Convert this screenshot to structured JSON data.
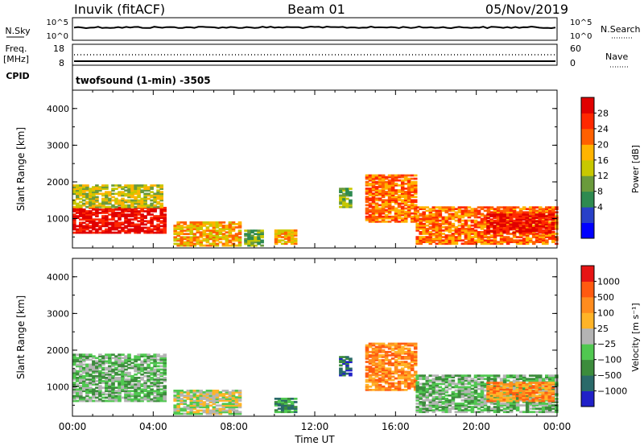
{
  "header": {
    "station": "Inuvik (fitACF)",
    "beam": "Beam 01",
    "date": "05/Nov/2019"
  },
  "sky_panel": {
    "left_label": "N.Sky",
    "right_label": "N.Search",
    "left_ticks": [
      "10^5",
      "10^0"
    ],
    "right_ticks": [
      "10^5",
      "10^0"
    ]
  },
  "freq_panel": {
    "left_label_line1": "Freq.",
    "left_label_line2": "[MHz]",
    "right_label": "Nave",
    "left_ticks": [
      "18",
      "8"
    ],
    "right_ticks": [
      "60",
      "0"
    ],
    "cpid_label": "CPID"
  },
  "program_name": "twofsound (1-min) -3505",
  "colors": {
    "frame": "#000000",
    "ground_scatter": "#b4b4b4"
  },
  "chart_data": [
    {
      "type": "heatmap",
      "quantity": "Power",
      "ylabel": "Slant Range [km]",
      "ylim": [
        200,
        4500
      ],
      "y_ticks": [
        "1000",
        "2000",
        "3000",
        "4000"
      ],
      "x_ticks": [
        "00:00",
        "04:00",
        "08:00",
        "12:00",
        "16:00",
        "20:00",
        "00:00"
      ],
      "colorbar_label": "Power [dB]",
      "colorbar_ticks": [
        "28",
        "24",
        "20",
        "16",
        "12",
        "8",
        "4"
      ],
      "colorbar_colors": [
        "#0000ff",
        "#2840c8",
        "#2e8a50",
        "#6a9a3c",
        "#c8c800",
        "#ffb400",
        "#ff6000",
        "#ff2800",
        "#e00000"
      ],
      "regions": [
        {
          "t0": 0.0,
          "t1": 4.6,
          "r0": 600,
          "r1": 1300,
          "level": 8
        },
        {
          "t0": 0.0,
          "t1": 4.4,
          "r0": 1300,
          "r1": 1900,
          "level": 4
        },
        {
          "t0": 5.0,
          "t1": 8.3,
          "r0": 250,
          "r1": 900,
          "level": 5
        },
        {
          "t0": 8.5,
          "t1": 9.4,
          "r0": 250,
          "r1": 700,
          "level": 3
        },
        {
          "t0": 10.0,
          "t1": 11.0,
          "r0": 300,
          "r1": 700,
          "level": 5
        },
        {
          "t0": 13.2,
          "t1": 13.8,
          "r0": 1300,
          "r1": 1800,
          "level": 3
        },
        {
          "t0": 14.5,
          "t1": 17.0,
          "r0": 900,
          "r1": 2200,
          "level": 6
        },
        {
          "t0": 17.0,
          "t1": 24.0,
          "r0": 300,
          "r1": 1300,
          "level": 6
        },
        {
          "t0": 20.5,
          "t1": 23.8,
          "r0": 600,
          "r1": 1100,
          "level": 8
        }
      ]
    },
    {
      "type": "heatmap",
      "quantity": "Velocity",
      "ylabel": "Slant Range [km]",
      "ylim": [
        200,
        4500
      ],
      "y_ticks": [
        "1000",
        "2000",
        "3000",
        "4000"
      ],
      "x_ticks": [
        "00:00",
        "04:00",
        "08:00",
        "12:00",
        "16:00",
        "20:00",
        "00:00"
      ],
      "xlabel": "Time UT",
      "colorbar_label": "Velocity [m s⁻¹]",
      "colorbar_ticks": [
        "1000",
        "500",
        "100",
        "25",
        "−25",
        "−100",
        "−500",
        "−1000"
      ],
      "colorbar_colors": [
        "#2020c8",
        "#2a6a6a",
        "#3c8c3c",
        "#50c850",
        "#b4b4b4",
        "#ffb428",
        "#ff8c1e",
        "#ff5a10",
        "#e61414"
      ],
      "regions": [
        {
          "t0": 0.0,
          "t1": 4.6,
          "r0": 600,
          "r1": 1900,
          "level": 3
        },
        {
          "t0": 5.0,
          "t1": 8.3,
          "r0": 250,
          "r1": 900,
          "level": 4
        },
        {
          "t0": 10.0,
          "t1": 11.0,
          "r0": 300,
          "r1": 700,
          "level": 2
        },
        {
          "t0": 13.2,
          "t1": 13.8,
          "r0": 1300,
          "r1": 1800,
          "level": 1
        },
        {
          "t0": 14.5,
          "t1": 17.0,
          "r0": 900,
          "r1": 2200,
          "level": 6
        },
        {
          "t0": 17.0,
          "t1": 24.0,
          "r0": 300,
          "r1": 1300,
          "level": 3
        },
        {
          "t0": 20.5,
          "t1": 23.8,
          "r0": 600,
          "r1": 1100,
          "level": 6
        }
      ]
    }
  ]
}
